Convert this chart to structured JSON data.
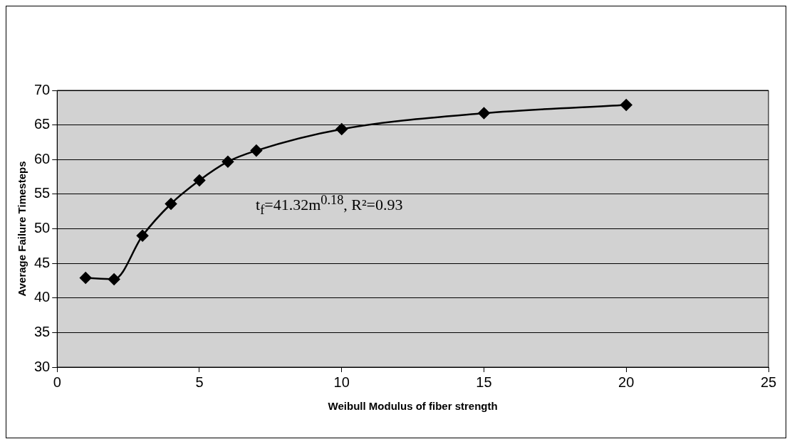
{
  "chart_data": {
    "type": "line",
    "xlabel": "Weibull Modulus of fiber strength",
    "ylabel": "Average Failure Timesteps",
    "x": [
      1,
      2,
      3,
      4,
      5,
      6,
      7,
      10,
      15,
      20
    ],
    "series": [
      {
        "color": "#000000",
        "values": [
          42.9,
          42.7,
          49.0,
          53.6,
          57.0,
          59.7,
          61.3,
          64.4,
          66.7,
          67.9
        ]
      }
    ],
    "xlim": [
      0,
      25
    ],
    "xticks": [
      0,
      5,
      10,
      15,
      20,
      25
    ],
    "ylim": [
      30,
      70
    ],
    "yticks": [
      30,
      35,
      40,
      45,
      50,
      55,
      60,
      65,
      70
    ],
    "grid": "y",
    "marker": "diamond",
    "line_style": "solid",
    "legend": false,
    "annotations": [
      "t$_{f}$=41.32m$^{0.18}$, R²=0.93"
    ]
  }
}
